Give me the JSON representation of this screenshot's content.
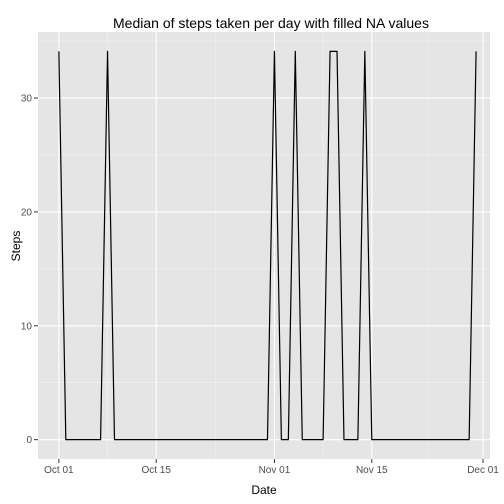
{
  "chart_data": {
    "type": "line",
    "title": "Median of steps taken per day with filled NA values",
    "xlabel": "Date",
    "ylabel": "Steps",
    "x_axis_type": "date",
    "xlim": [
      "2012-09-28",
      "2012-12-02"
    ],
    "ylim": [
      -1.7,
      35.8
    ],
    "x_ticks": [
      {
        "date": "2012-10-01",
        "label": "Oct 01"
      },
      {
        "date": "2012-10-15",
        "label": "Oct 15"
      },
      {
        "date": "2012-11-01",
        "label": "Nov 01"
      },
      {
        "date": "2012-11-15",
        "label": "Nov 15"
      },
      {
        "date": "2012-12-01",
        "label": "Dec 01"
      }
    ],
    "y_ticks": [
      0,
      10,
      20,
      30
    ],
    "grid": true,
    "series": [
      {
        "x": [
          "2012-10-01",
          "2012-10-02",
          "2012-10-03",
          "2012-10-04",
          "2012-10-05",
          "2012-10-06",
          "2012-10-07",
          "2012-10-08",
          "2012-10-09",
          "2012-10-10",
          "2012-10-11",
          "2012-10-12",
          "2012-10-13",
          "2012-10-14",
          "2012-10-15",
          "2012-10-16",
          "2012-10-17",
          "2012-10-18",
          "2012-10-19",
          "2012-10-20",
          "2012-10-21",
          "2012-10-22",
          "2012-10-23",
          "2012-10-24",
          "2012-10-25",
          "2012-10-26",
          "2012-10-27",
          "2012-10-28",
          "2012-10-29",
          "2012-10-30",
          "2012-10-31",
          "2012-11-01",
          "2012-11-02",
          "2012-11-03",
          "2012-11-04",
          "2012-11-05",
          "2012-11-06",
          "2012-11-07",
          "2012-11-08",
          "2012-11-09",
          "2012-11-10",
          "2012-11-11",
          "2012-11-12",
          "2012-11-13",
          "2012-11-14",
          "2012-11-15",
          "2012-11-16",
          "2012-11-17",
          "2012-11-18",
          "2012-11-19",
          "2012-11-20",
          "2012-11-21",
          "2012-11-22",
          "2012-11-23",
          "2012-11-24",
          "2012-11-25",
          "2012-11-26",
          "2012-11-27",
          "2012-11-28",
          "2012-11-29",
          "2012-11-30"
        ],
        "y": [
          34.1,
          0,
          0,
          0,
          0,
          0,
          0,
          34.1,
          0,
          0,
          0,
          0,
          0,
          0,
          0,
          0,
          0,
          0,
          0,
          0,
          0,
          0,
          0,
          0,
          0,
          0,
          0,
          0,
          0,
          0,
          0,
          34.1,
          0,
          0,
          34.1,
          0,
          0,
          0,
          0,
          34.1,
          34.1,
          0,
          0,
          0,
          34.1,
          0,
          0,
          0,
          0,
          0,
          0,
          0,
          0,
          0,
          0,
          0,
          0,
          0,
          0,
          0,
          34.1
        ],
        "color": "#000000"
      }
    ],
    "colors": {
      "panel_background": "#e5e5e5",
      "major_grid": "#ffffff",
      "minor_grid": "#f2f2f2",
      "tick_text": "#4d4d4d",
      "tick_mark": "#333333"
    }
  }
}
